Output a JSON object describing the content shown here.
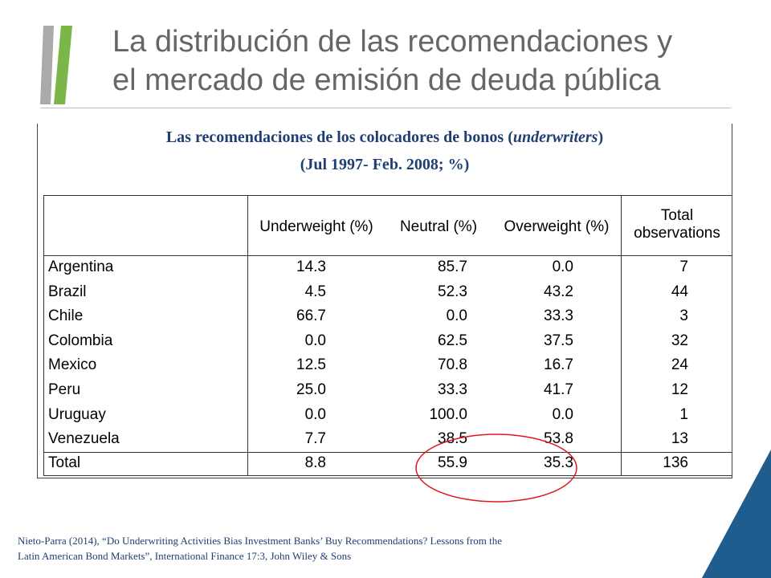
{
  "slide": {
    "title_line1": "La distribución de las recomendaciones y",
    "title_line2": "el mercado de emisión de deuda pública",
    "logo": "oecd-chevron-logo",
    "colors": {
      "title": "#666666",
      "caption": "#1f3f73",
      "accent_blue": "#1f5d8f",
      "highlight": "#e0181f"
    }
  },
  "table": {
    "caption_line1_pre": "Las recomendaciones de los colocadores de bonos (",
    "caption_line1_em": "underwriters",
    "caption_line1_post": ")",
    "caption_line2": "(Jul 1997- Feb. 2008; %)",
    "headers": {
      "underweight": "Underweight (%)",
      "neutral": "Neutral (%)",
      "overweight": "Overweight (%)",
      "total_line1": "Total",
      "total_line2": "observations"
    },
    "rows": [
      {
        "country": "Argentina",
        "underweight": "14.3",
        "neutral": "85.7",
        "overweight": "0.0",
        "total": "7"
      },
      {
        "country": "Brazil",
        "underweight": "4.5",
        "neutral": "52.3",
        "overweight": "43.2",
        "total": "44"
      },
      {
        "country": "Chile",
        "underweight": "66.7",
        "neutral": "0.0",
        "overweight": "33.3",
        "total": "3"
      },
      {
        "country": "Colombia",
        "underweight": "0.0",
        "neutral": "62.5",
        "overweight": "37.5",
        "total": "32"
      },
      {
        "country": "Mexico",
        "underweight": "12.5",
        "neutral": "70.8",
        "overweight": "16.7",
        "total": "24"
      },
      {
        "country": "Peru",
        "underweight": "25.0",
        "neutral": "33.3",
        "overweight": "41.7",
        "total": "12"
      },
      {
        "country": "Uruguay",
        "underweight": "0.0",
        "neutral": "100.0",
        "overweight": "0.0",
        "total": "1"
      },
      {
        "country": "Venezuela",
        "underweight": "7.7",
        "neutral": "38.5",
        "overweight": "53.8",
        "total": "13"
      }
    ],
    "total_row": {
      "country": "Total",
      "underweight": "8.8",
      "neutral": "55.9",
      "overweight": "35.3",
      "total": "136"
    }
  },
  "source": {
    "line1": "Nieto-Parra (2014), “Do Underwriting Activities Bias Investment Banks’ Buy Recommendations? Lessons from the",
    "line2": "Latin American Bond Markets”, International Finance 17:3, John Wiley & Sons"
  }
}
